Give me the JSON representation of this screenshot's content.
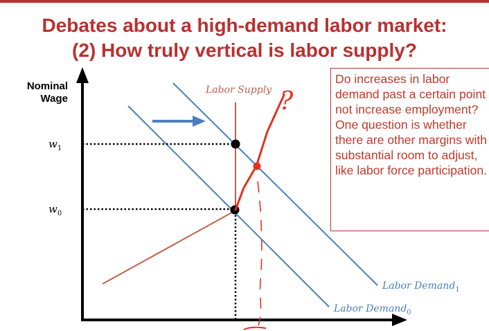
{
  "title": {
    "line1": "Debates about a high-demand labor market:",
    "line2": "(2) How truly vertical is labor supply?"
  },
  "diagram": {
    "y_axis_label_line1": "Nominal",
    "y_axis_label_line2": "Wage",
    "labor_supply_label": "Labor Supply",
    "w1_label": "w",
    "w1_sub": "1",
    "w0_label": "w",
    "w0_sub": "0",
    "demand1_label": "Labor Demand",
    "demand1_sub": "1",
    "demand0_label": "Labor Demand",
    "demand0_sub": "0",
    "question_mark": "?"
  },
  "callout": {
    "text": "Do increases in labor demand past a certain point not increase employment? One question is whether there are other margins with substantial room to adjust, like labor force participation."
  },
  "colors": {
    "title": "#b8312f",
    "demand": "#4a7ec0",
    "supply": "#c0604a",
    "annotation": "#e2321f"
  }
}
